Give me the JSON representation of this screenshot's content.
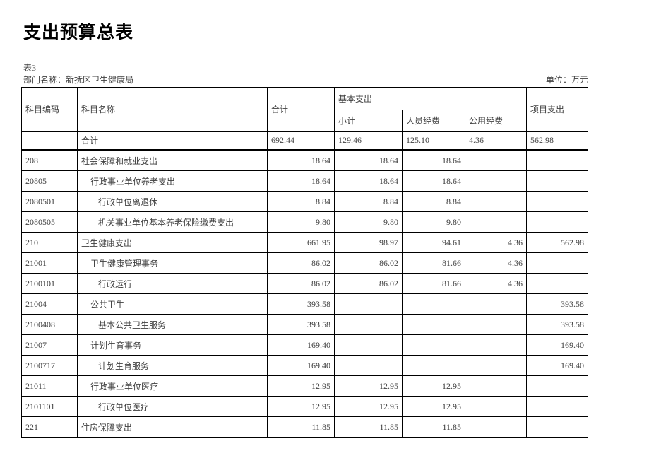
{
  "page": {
    "title": "支出预算总表",
    "table_label": "表3",
    "department_label": "部门名称：新抚区卫生健康局",
    "unit_label": "单位：万元"
  },
  "table": {
    "headers": {
      "code": "科目编码",
      "name": "科目名称",
      "total": "合计",
      "basic": "基本支出",
      "basic_subtotal": "小计",
      "personnel": "人员经费",
      "public": "公用经费",
      "project": "项目支出"
    },
    "total_row": {
      "code": "",
      "name": "合计",
      "total": "692.44",
      "basic_subtotal": "129.46",
      "personnel": "125.10",
      "public": "4.36",
      "project": "562.98"
    },
    "rows": [
      {
        "code": "208",
        "name": "社会保障和就业支出",
        "indent": 0,
        "total": "18.64",
        "basic_subtotal": "18.64",
        "personnel": "18.64",
        "public": "",
        "project": ""
      },
      {
        "code": "20805",
        "name": "行政事业单位养老支出",
        "indent": 1,
        "total": "18.64",
        "basic_subtotal": "18.64",
        "personnel": "18.64",
        "public": "",
        "project": ""
      },
      {
        "code": "2080501",
        "name": "行政单位离退休",
        "indent": 2,
        "total": "8.84",
        "basic_subtotal": "8.84",
        "personnel": "8.84",
        "public": "",
        "project": ""
      },
      {
        "code": "2080505",
        "name": "机关事业单位基本养老保险缴费支出",
        "indent": 2,
        "total": "9.80",
        "basic_subtotal": "9.80",
        "personnel": "9.80",
        "public": "",
        "project": ""
      },
      {
        "code": "210",
        "name": "卫生健康支出",
        "indent": 0,
        "total": "661.95",
        "basic_subtotal": "98.97",
        "personnel": "94.61",
        "public": "4.36",
        "project": "562.98"
      },
      {
        "code": "21001",
        "name": "卫生健康管理事务",
        "indent": 1,
        "total": "86.02",
        "basic_subtotal": "86.02",
        "personnel": "81.66",
        "public": "4.36",
        "project": ""
      },
      {
        "code": "2100101",
        "name": "行政运行",
        "indent": 2,
        "total": "86.02",
        "basic_subtotal": "86.02",
        "personnel": "81.66",
        "public": "4.36",
        "project": ""
      },
      {
        "code": "21004",
        "name": "公共卫生",
        "indent": 1,
        "total": "393.58",
        "basic_subtotal": "",
        "personnel": "",
        "public": "",
        "project": "393.58"
      },
      {
        "code": "2100408",
        "name": "基本公共卫生服务",
        "indent": 2,
        "total": "393.58",
        "basic_subtotal": "",
        "personnel": "",
        "public": "",
        "project": "393.58"
      },
      {
        "code": "21007",
        "name": "计划生育事务",
        "indent": 1,
        "total": "169.40",
        "basic_subtotal": "",
        "personnel": "",
        "public": "",
        "project": "169.40"
      },
      {
        "code": "2100717",
        "name": "计划生育服务",
        "indent": 2,
        "total": "169.40",
        "basic_subtotal": "",
        "personnel": "",
        "public": "",
        "project": "169.40"
      },
      {
        "code": "21011",
        "name": "行政事业单位医疗",
        "indent": 1,
        "total": "12.95",
        "basic_subtotal": "12.95",
        "personnel": "12.95",
        "public": "",
        "project": ""
      },
      {
        "code": "2101101",
        "name": "行政单位医疗",
        "indent": 2,
        "total": "12.95",
        "basic_subtotal": "12.95",
        "personnel": "12.95",
        "public": "",
        "project": ""
      },
      {
        "code": "221",
        "name": "住房保障支出",
        "indent": 0,
        "total": "11.85",
        "basic_subtotal": "11.85",
        "personnel": "11.85",
        "public": "",
        "project": ""
      }
    ]
  }
}
